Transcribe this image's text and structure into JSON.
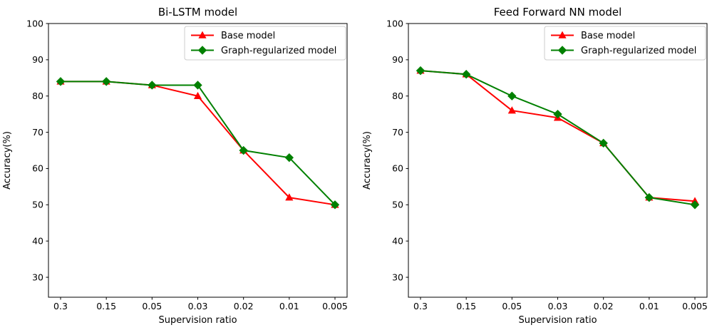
{
  "figure": {
    "background": "#ffffff",
    "text_color": "#000000",
    "spine_color": "#000000",
    "legend_border_color": "#cccccc",
    "legend_background": "#ffffff"
  },
  "chart_data": [
    {
      "type": "line",
      "title": "Bi-LSTM model",
      "xlabel": "Supervision ratio",
      "ylabel": "Accuracy(%)",
      "categories": [
        "0.3",
        "0.15",
        "0.05",
        "0.03",
        "0.02",
        "0.01",
        "0.005"
      ],
      "yticks": [
        30,
        40,
        50,
        60,
        70,
        80,
        90,
        100
      ],
      "ylim": [
        24.5,
        100
      ],
      "grid": false,
      "legend_position": "upper right",
      "series": [
        {
          "name": "Base model",
          "color": "#ff0000",
          "marker": "triangle-up",
          "values": [
            84,
            84,
            83,
            80,
            65,
            52,
            50
          ]
        },
        {
          "name": "Graph-regularized model",
          "color": "#008000",
          "marker": "diamond",
          "values": [
            84,
            84,
            83,
            83,
            65,
            63,
            50
          ]
        }
      ]
    },
    {
      "type": "line",
      "title": "Feed Forward NN model",
      "xlabel": "Supervision ratio",
      "ylabel": "Accuracy(%)",
      "categories": [
        "0.3",
        "0.15",
        "0.05",
        "0.03",
        "0.02",
        "0.01",
        "0.005"
      ],
      "yticks": [
        30,
        40,
        50,
        60,
        70,
        80,
        90,
        100
      ],
      "ylim": [
        24.5,
        100
      ],
      "grid": false,
      "legend_position": "upper right",
      "series": [
        {
          "name": "Base model",
          "color": "#ff0000",
          "marker": "triangle-up",
          "values": [
            87,
            86,
            76,
            74,
            67,
            52,
            51
          ]
        },
        {
          "name": "Graph-regularized model",
          "color": "#008000",
          "marker": "diamond",
          "values": [
            87,
            86,
            80,
            75,
            67,
            52,
            50
          ]
        }
      ]
    }
  ]
}
